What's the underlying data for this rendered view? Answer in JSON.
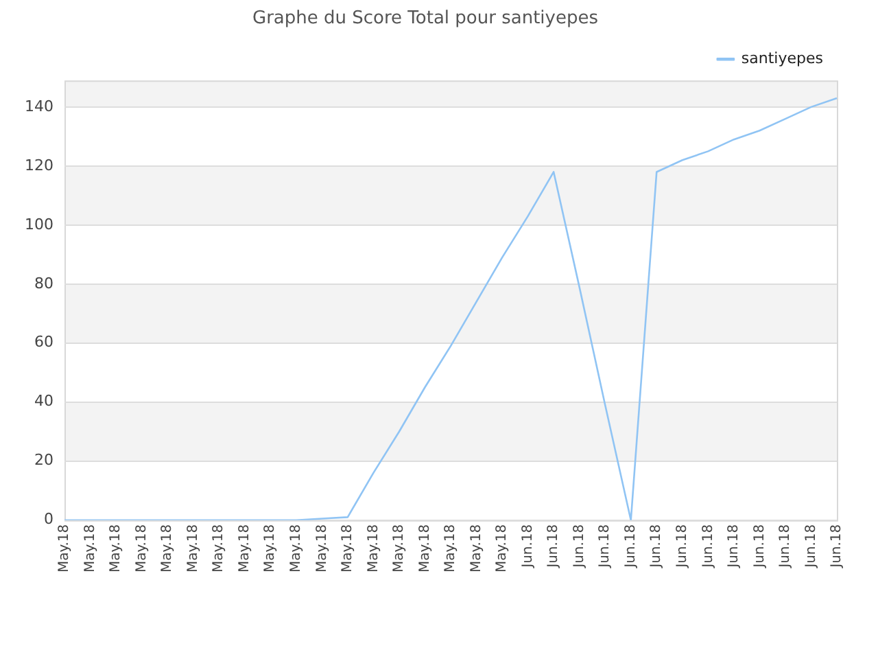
{
  "chart_data": {
    "type": "line",
    "title": "Graphe du Score Total pour santiyepes",
    "categories": [
      "May.18",
      "May.18",
      "May.18",
      "May.18",
      "May.18",
      "May.18",
      "May.18",
      "May.18",
      "May.18",
      "May.18",
      "May.18",
      "May.18",
      "May.18",
      "May.18",
      "May.18",
      "May.18",
      "May.18",
      "May.18",
      "Jun.18",
      "Jun.18",
      "Jun.18",
      "Jun.18",
      "Jun.18",
      "Jun.18",
      "Jun.18",
      "Jun.18",
      "Jun.18",
      "Jun.18",
      "Jun.18",
      "Jun.18",
      "Jun.18"
    ],
    "series": [
      {
        "name": "santiyepes",
        "color": "#90c4f4",
        "values": [
          0,
          0,
          0,
          0,
          0,
          0,
          0,
          0,
          0,
          0,
          0.5,
          1,
          16,
          30,
          45,
          59,
          74,
          89,
          103,
          118,
          79,
          39,
          0,
          118,
          122,
          125,
          129,
          132,
          136,
          140,
          143
        ]
      }
    ],
    "ylim": [
      0,
      149
    ],
    "yticks": [
      0,
      20,
      40,
      60,
      80,
      100,
      120,
      140
    ],
    "grid": "y",
    "legend": "top right",
    "marker": "none",
    "line_style": "solid"
  }
}
